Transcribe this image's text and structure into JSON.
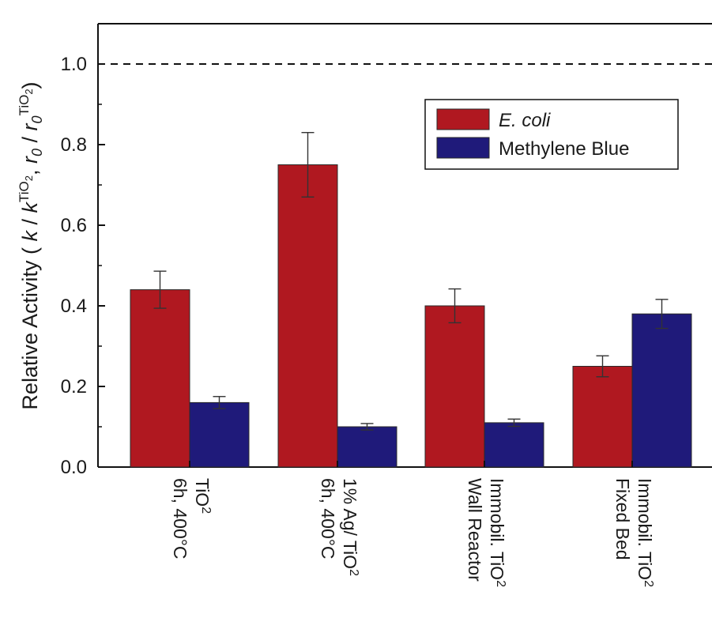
{
  "chart_data": {
    "type": "bar",
    "categories": [
      [
        "TiO2",
        "6h, 400°C"
      ],
      [
        "1% Ag/ TiO2",
        "6h, 400°C"
      ],
      [
        "Immobil. TiO2",
        "Wall Reactor"
      ],
      [
        "Immobil. TiO2",
        "Fixed Bed"
      ]
    ],
    "series": [
      {
        "name": "E. coli",
        "values": [
          0.44,
          0.75,
          0.4,
          0.25
        ],
        "errors": [
          0.046,
          0.08,
          0.042,
          0.026
        ],
        "color": "#b01820"
      },
      {
        "name": "Methylene Blue",
        "values": [
          0.16,
          0.1,
          0.11,
          0.38
        ],
        "errors": [
          0.015,
          0.008,
          0.009,
          0.036
        ],
        "color": "#1f1a7a"
      }
    ],
    "reference_line": {
      "value": 1.0,
      "style": "dashed"
    },
    "ylabel": "Relative Activity ( k / k^TiO2 , r0 / r0^TiO2 )",
    "xlabel": "",
    "ylim": [
      0,
      1.1
    ],
    "yticks": [
      "0.0",
      "0.2",
      "0.4",
      "0.6",
      "0.8",
      "1.0"
    ],
    "grid": false,
    "legend_position": "top-right"
  }
}
